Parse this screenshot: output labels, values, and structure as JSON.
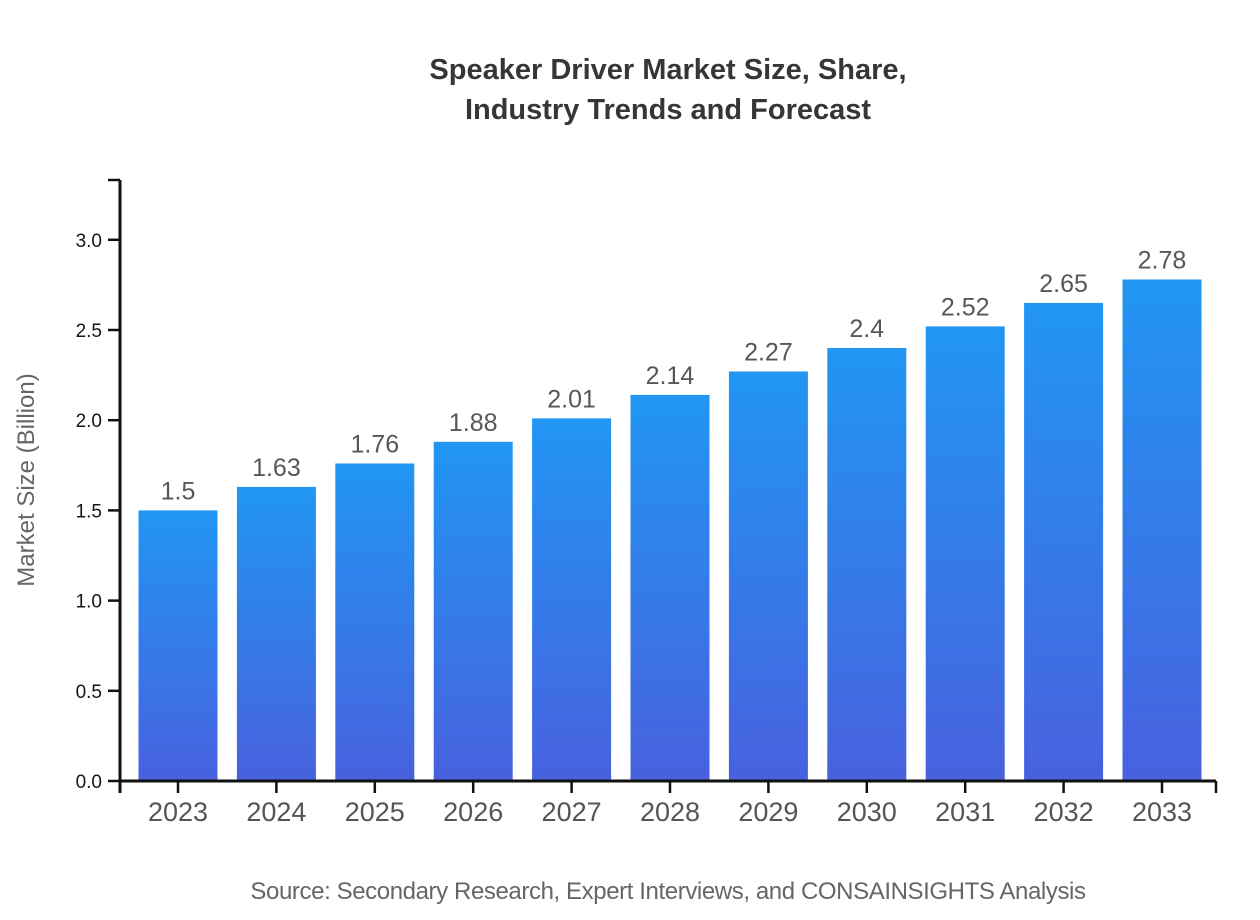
{
  "chart_data": {
    "type": "bar",
    "title": "Speaker Driver Market Size, Share, Industry Trends and Forecast",
    "title_lines": [
      "Speaker Driver Market Size, Share,",
      "Industry Trends and Forecast"
    ],
    "categories": [
      "2023",
      "2024",
      "2025",
      "2026",
      "2027",
      "2028",
      "2029",
      "2030",
      "2031",
      "2032",
      "2033"
    ],
    "values": [
      1.5,
      1.63,
      1.76,
      1.88,
      2.01,
      2.14,
      2.27,
      2.4,
      2.52,
      2.65,
      2.78
    ],
    "value_labels": [
      "1.5",
      "1.63",
      "1.76",
      "1.88",
      "2.01",
      "2.14",
      "2.27",
      "2.4",
      "2.52",
      "2.65",
      "2.78"
    ],
    "xlabel": "",
    "ylabel": "Market Size (Billion)",
    "ylim": [
      0,
      3.33
    ],
    "yticks": [
      0.0,
      0.5,
      1.0,
      1.5,
      2.0,
      2.5,
      3.0
    ],
    "ytick_labels": [
      "0.0",
      "0.5",
      "1.0",
      "1.5",
      "2.0",
      "2.5",
      "3.0"
    ],
    "grid": false,
    "legend": false
  },
  "source_note": "Source: Secondary Research, Expert Interviews, and CONSAINSIGHTS Analysis",
  "colors": {
    "background": "#ffffff",
    "bar_gradient_top": "#2196f3",
    "bar_gradient_bottom": "#4861de",
    "axis": "#111111",
    "title_text": "#363636",
    "ytick_text": "#161616",
    "category_text": "#555555",
    "value_text": "#575757",
    "axis_label_text": "#666666",
    "source_text": "#666666"
  }
}
